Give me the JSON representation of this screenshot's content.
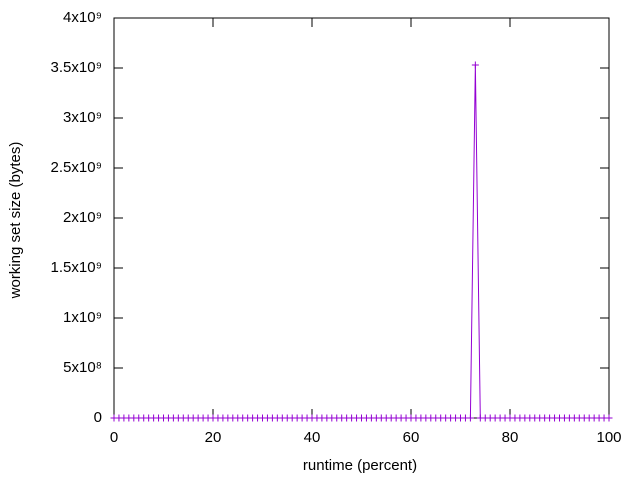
{
  "chart_data": {
    "type": "line",
    "xlabel": "runtime (percent)",
    "ylabel": "working set size (bytes)",
    "color": "#9400d3",
    "marker": "+",
    "x": [
      0,
      1,
      2,
      3,
      4,
      5,
      6,
      7,
      8,
      9,
      10,
      11,
      12,
      13,
      14,
      15,
      16,
      17,
      18,
      19,
      20,
      21,
      22,
      23,
      24,
      25,
      26,
      27,
      28,
      29,
      30,
      31,
      32,
      33,
      34,
      35,
      36,
      37,
      38,
      39,
      40,
      41,
      42,
      43,
      44,
      45,
      46,
      47,
      48,
      49,
      50,
      51,
      52,
      53,
      54,
      55,
      56,
      57,
      58,
      59,
      60,
      61,
      62,
      63,
      64,
      65,
      66,
      67,
      68,
      69,
      70,
      71,
      72,
      73,
      74,
      75,
      76,
      77,
      78,
      79,
      80,
      81,
      82,
      83,
      84,
      85,
      86,
      87,
      88,
      89,
      90,
      91,
      92,
      93,
      94,
      95,
      96,
      97,
      98,
      99,
      100
    ],
    "values": [
      0,
      0,
      0,
      0,
      0,
      0,
      0,
      0,
      0,
      0,
      0,
      0,
      0,
      0,
      0,
      0,
      0,
      0,
      0,
      0,
      0,
      0,
      0,
      0,
      0,
      0,
      0,
      0,
      0,
      0,
      0,
      0,
      0,
      0,
      0,
      0,
      0,
      0,
      0,
      0,
      0,
      0,
      0,
      0,
      0,
      0,
      0,
      0,
      0,
      0,
      0,
      0,
      0,
      0,
      0,
      0,
      0,
      0,
      0,
      0,
      0,
      0,
      0,
      0,
      0,
      0,
      0,
      0,
      0,
      0,
      0,
      0,
      0,
      3530000000,
      0,
      0,
      0,
      0,
      0,
      0,
      0,
      0,
      0,
      0,
      0,
      0,
      0,
      0,
      0,
      0,
      0,
      0,
      0,
      0,
      0,
      0,
      0,
      0,
      0,
      0,
      0
    ],
    "xlim": [
      0,
      100
    ],
    "xticks": [
      0,
      20,
      40,
      60,
      80,
      100
    ],
    "ylim": [
      0,
      4000000000
    ],
    "yticks": [
      0,
      {
        "value": 500000000,
        "label": "5x10⁸"
      },
      {
        "value": 1000000000,
        "label": "1x10⁹"
      },
      {
        "value": 1500000000,
        "label": "1.5x10⁹"
      },
      {
        "value": 2000000000,
        "label": "2x10⁹"
      },
      {
        "value": 2500000000,
        "label": "2.5x10⁹"
      },
      {
        "value": 3000000000,
        "label": "3x10⁹"
      },
      {
        "value": 3500000000,
        "label": "3.5x10⁹"
      },
      {
        "value": 4000000000,
        "label": "4x10⁹"
      }
    ]
  }
}
